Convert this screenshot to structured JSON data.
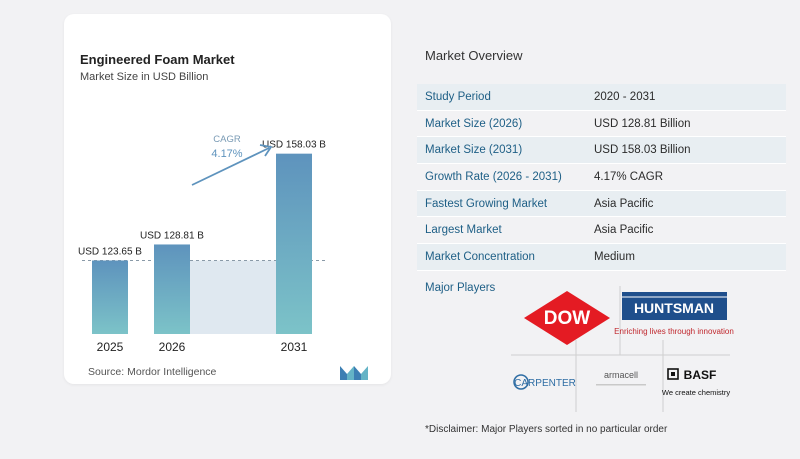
{
  "chart_data": {
    "type": "bar",
    "title": "Engineered Foam Market",
    "subtitle": "Market Size in USD Billion",
    "categories": [
      "2025",
      "2026",
      "2031"
    ],
    "values": [
      123.65,
      128.81,
      158.03
    ],
    "value_labels": [
      "USD 123.65 B",
      "USD 128.81 B",
      "USD 158.03 B"
    ],
    "cagr_label": "CAGR",
    "cagr_value": "4.17%",
    "source": "Source:  Mordor Intelligence",
    "bar_color": "#5e93bd",
    "bar_color_bottom": "#7cc3c8",
    "shade_color": "#dfe8f0"
  },
  "overview": {
    "title": "Market Overview",
    "rows": [
      {
        "key": "Study Period",
        "value": "2020 - 2031"
      },
      {
        "key": "Market Size (2026)",
        "value": "USD 128.81 Billion"
      },
      {
        "key": "Market Size (2031)",
        "value": "USD 158.03 Billion"
      },
      {
        "key": "Growth Rate (2026 - 2031)",
        "value": "4.17% CAGR"
      },
      {
        "key": "Fastest Growing Market",
        "value": "Asia Pacific"
      },
      {
        "key": "Largest Market",
        "value": "Asia Pacific"
      },
      {
        "key": "Market Concentration",
        "value": "Medium"
      }
    ],
    "players_label": "Major Players",
    "players": {
      "dow": "DOW",
      "huntsman": "HUNTSMAN",
      "huntsman_tagline": "Enriching lives through innovation",
      "carpenter": "CARPENTER",
      "armacell": "armacell",
      "basf": "BASF",
      "basf_tagline": "We create chemistry"
    },
    "disclaimer": "*Disclaimer: Major Players sorted in no particular order"
  },
  "colors": {
    "key_text": "#1e5f86",
    "row_band": "#e8eef2",
    "dow_red": "#e41b23",
    "huntsman_blue": "#1f4f8c",
    "huntsman_red": "#c0272d"
  }
}
